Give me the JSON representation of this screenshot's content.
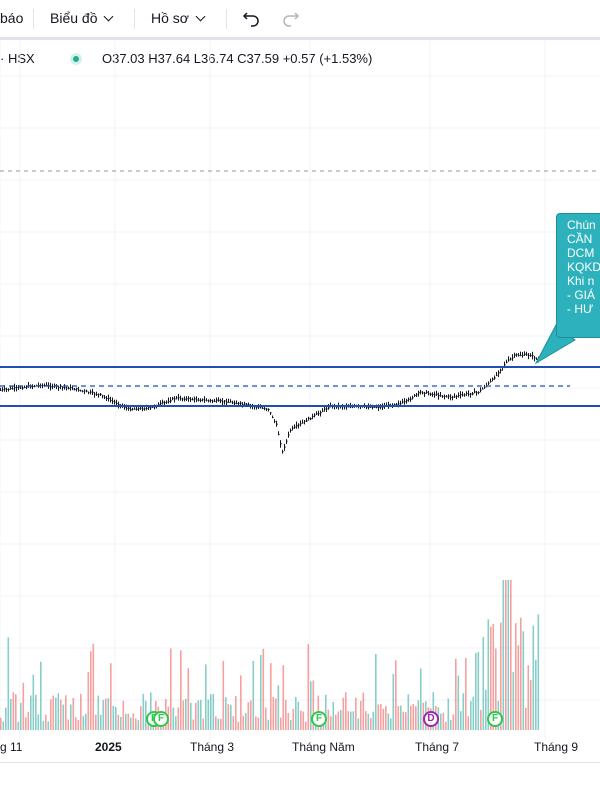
{
  "toolbar": {
    "alerts_label": "báo",
    "chart_label": "Biểu đồ",
    "profile_label": "Hồ sơ",
    "undo_icon": "undo-icon",
    "redo_icon": "redo-icon"
  },
  "legend": {
    "symbol": "· HSX",
    "ohlc": "O37.03 H37.64 L36.74 C37.59 +0.57 (+1.53%)",
    "status_color": "#22ab94"
  },
  "annotation": {
    "lines": [
      "Chún",
      "CẦN",
      "DCM",
      "KQKD",
      "Khi n",
      "- GIÁ",
      "- HƯ"
    ]
  },
  "xaxis": {
    "ticks": [
      "g 11",
      "2025",
      "Tháng 3",
      "Tháng Năm",
      "Tháng 7",
      "Tháng 9"
    ]
  },
  "events": [
    "F",
    "F",
    "F",
    "D",
    "F"
  ],
  "colors": {
    "up": "#26a69a",
    "down": "#ef5350",
    "level_line": "#1f4fb4",
    "annotation_bg": "#2db2bd"
  },
  "levels": {
    "resistance": 37.0,
    "support": 33.6,
    "mid_dashed": 35.3
  }
}
